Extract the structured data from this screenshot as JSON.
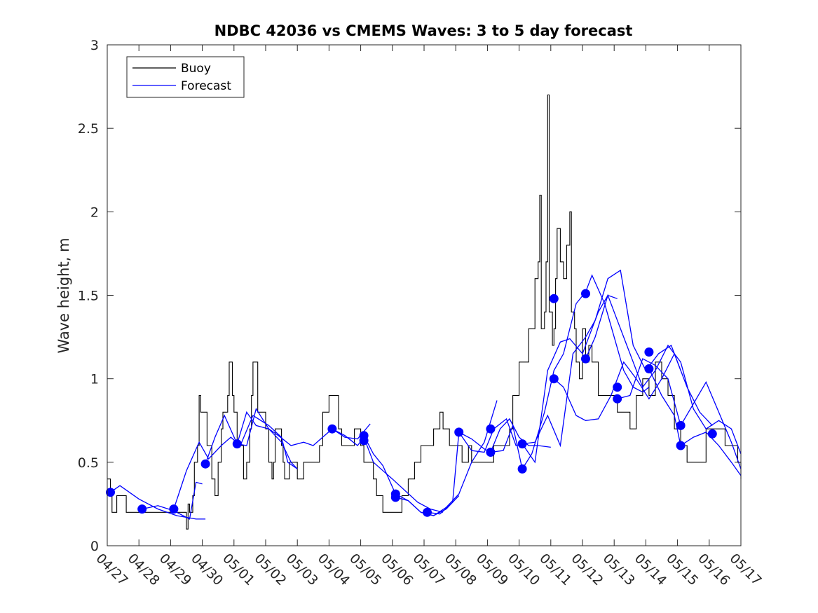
{
  "chart_data": {
    "type": "line",
    "title": "NDBC 42036 vs CMEMS Waves: 3 to 5 day forecast",
    "xlabel": "",
    "ylabel": "Wave height, m",
    "ylim": [
      0,
      3
    ],
    "yticks": [
      0,
      0.5,
      1,
      1.5,
      2,
      2.5,
      3
    ],
    "ytick_labels": [
      "0",
      "0.5",
      "1",
      "1.5",
      "2",
      "2.5",
      "3"
    ],
    "xlim": [
      "04/27",
      "05/17"
    ],
    "xtick_labels": [
      "04/27",
      "04/28",
      "04/29",
      "04/30",
      "05/01",
      "05/02",
      "05/03",
      "05/04",
      "05/05",
      "05/06",
      "05/07",
      "05/08",
      "05/09",
      "05/10",
      "05/11",
      "05/12",
      "05/13",
      "05/14",
      "05/15",
      "05/16",
      "05/17"
    ],
    "grid": false,
    "legend_position": "top-left",
    "colors": {
      "buoy": "#000000",
      "forecast": "#0000ff",
      "axes": "#262626"
    },
    "legend": [
      {
        "name": "Buoy",
        "color": "#000000"
      },
      {
        "name": "Forecast",
        "color": "#0000ff"
      }
    ],
    "buoy": {
      "name": "Buoy",
      "x_days_from_04_27": [
        0,
        0.1,
        0.15,
        0.3,
        0.35,
        0.6,
        0.75,
        1.0,
        1.5,
        2.0,
        2.5,
        2.55,
        2.6,
        2.7,
        2.75,
        2.85,
        2.9,
        2.95,
        3.1,
        3.15,
        3.3,
        3.4,
        3.5,
        3.6,
        3.65,
        3.8,
        3.85,
        3.95,
        4.0,
        4.1,
        4.3,
        4.4,
        4.5,
        4.55,
        4.6,
        4.75,
        4.8,
        5.0,
        5.1,
        5.2,
        5.25,
        5.3,
        5.5,
        5.55,
        5.6,
        5.65,
        5.75,
        5.85,
        6.0,
        6.2,
        6.3,
        6.5,
        6.7,
        6.8,
        7.0,
        7.3,
        7.4,
        7.6,
        7.7,
        7.8,
        8.0,
        8.1,
        8.2,
        8.4,
        8.5,
        8.6,
        8.7,
        8.9,
        9.1,
        9.3,
        9.5,
        9.7,
        9.9,
        10.0,
        10.3,
        10.5,
        10.6,
        10.8,
        11.0,
        11.2,
        11.3,
        11.4,
        11.5,
        11.8,
        12.0,
        12.1,
        12.2,
        12.3,
        12.5,
        12.7,
        12.8,
        13.0,
        13.3,
        13.5,
        13.6,
        13.65,
        13.7,
        13.8,
        13.85,
        13.9,
        13.95,
        14.05,
        14.1,
        14.15,
        14.2,
        14.3,
        14.4,
        14.5,
        14.6,
        14.65,
        14.75,
        14.8,
        14.9,
        15.0,
        15.1,
        15.2,
        15.3,
        15.5,
        15.7,
        15.9,
        16.1,
        16.3,
        16.5,
        16.7,
        16.9,
        17.1,
        17.3,
        17.5,
        17.7,
        17.9,
        18.1,
        18.3,
        18.5,
        18.7,
        18.9,
        19.1,
        19.3,
        19.5,
        19.7,
        19.9,
        20.0
      ],
      "values": [
        0.4,
        0.3,
        0.2,
        0.3,
        0.3,
        0.2,
        0.2,
        0.2,
        0.2,
        0.2,
        0.1,
        0.25,
        0.2,
        0.3,
        0.5,
        0.6,
        0.9,
        0.8,
        0.8,
        0.6,
        0.4,
        0.3,
        0.5,
        0.7,
        0.8,
        0.9,
        1.1,
        0.9,
        0.8,
        0.6,
        0.4,
        0.5,
        0.7,
        0.9,
        1.1,
        0.8,
        0.8,
        0.7,
        0.5,
        0.4,
        0.5,
        0.7,
        0.6,
        0.5,
        0.4,
        0.4,
        0.5,
        0.5,
        0.4,
        0.5,
        0.5,
        0.5,
        0.6,
        0.8,
        0.9,
        0.7,
        0.6,
        0.6,
        0.6,
        0.7,
        0.6,
        0.5,
        0.5,
        0.4,
        0.3,
        0.3,
        0.2,
        0.2,
        0.2,
        0.3,
        0.4,
        0.5,
        0.6,
        0.6,
        0.7,
        0.8,
        0.7,
        0.6,
        0.6,
        0.5,
        0.5,
        0.6,
        0.5,
        0.5,
        0.5,
        0.5,
        0.6,
        0.6,
        0.6,
        0.7,
        0.9,
        1.1,
        1.3,
        1.6,
        1.7,
        2.1,
        1.3,
        1.4,
        1.7,
        2.7,
        1.4,
        1.2,
        1.3,
        1.6,
        1.9,
        1.7,
        1.6,
        1.8,
        2.0,
        1.4,
        1.3,
        1.1,
        1.0,
        1.3,
        1.1,
        1.2,
        1.1,
        0.9,
        0.9,
        0.9,
        0.8,
        0.8,
        0.7,
        0.9,
        1.0,
        0.9,
        1.1,
        1.0,
        0.9,
        0.7,
        0.6,
        0.5,
        0.5,
        0.5,
        0.7,
        0.7,
        0.7,
        0.6,
        0.6,
        0.5,
        0.4
      ]
    },
    "forecast_series": [
      {
        "name": "Forecast",
        "x_days_from_04_27": [
          0.1,
          0.4,
          1.0,
          1.6,
          2.2,
          2.8,
          3.1
        ],
        "values": [
          0.32,
          0.36,
          0.28,
          0.22,
          0.18,
          0.16,
          0.16
        ]
      },
      {
        "name": "Forecast",
        "x_days_from_04_27": [
          1.1,
          1.6,
          2.1,
          2.6,
          2.8,
          3.0
        ],
        "values": [
          0.22,
          0.24,
          0.21,
          0.16,
          0.38,
          0.37
        ]
      },
      {
        "name": "Forecast",
        "x_days_from_04_27": [
          2.1,
          2.5,
          2.9,
          3.2,
          3.6,
          3.9,
          4.2,
          4.6,
          5.1,
          5.5,
          5.7,
          6.0
        ],
        "values": [
          0.22,
          0.45,
          0.62,
          0.52,
          0.6,
          0.65,
          0.6,
          0.78,
          0.72,
          0.65,
          0.5,
          0.46
        ]
      },
      {
        "name": "Forecast",
        "x_days_from_04_27": [
          3.1,
          3.4,
          3.7,
          4.1,
          4.4,
          4.7,
          5.1,
          5.5,
          5.8,
          6.0
        ],
        "values": [
          0.49,
          0.65,
          0.78,
          0.61,
          0.8,
          0.72,
          0.7,
          0.62,
          0.5,
          0.46
        ]
      },
      {
        "name": "Forecast",
        "x_days_from_04_27": [
          4.1,
          4.4,
          4.7,
          5.1,
          5.4,
          5.8,
          6.2,
          6.5,
          7.1,
          7.5,
          7.9,
          8.3
        ],
        "values": [
          0.61,
          0.6,
          0.82,
          0.7,
          0.66,
          0.6,
          0.62,
          0.6,
          0.7,
          0.65,
          0.64,
          0.73
        ]
      },
      {
        "name": "Forecast",
        "x_days_from_04_27": [
          7.1,
          7.5,
          7.9,
          8.1,
          8.4,
          8.7,
          9.0,
          9.4,
          9.8,
          10.2,
          10.6
        ],
        "values": [
          0.7,
          0.66,
          0.6,
          0.65,
          0.5,
          0.45,
          0.4,
          0.33,
          0.26,
          0.22,
          0.2
        ]
      },
      {
        "name": "Forecast",
        "x_days_from_04_27": [
          8.1,
          8.4,
          8.7,
          9.1,
          9.5,
          9.9,
          10.3,
          10.7,
          11.1
        ],
        "values": [
          0.66,
          0.55,
          0.48,
          0.31,
          0.27,
          0.2,
          0.18,
          0.22,
          0.3
        ]
      },
      {
        "name": "Forecast",
        "x_days_from_04_27": [
          9.1,
          9.5,
          9.9,
          10.3,
          10.7,
          11.1,
          11.5,
          11.9,
          12.3
        ],
        "values": [
          0.29,
          0.27,
          0.2,
          0.18,
          0.23,
          0.31,
          0.5,
          0.62,
          0.87
        ]
      },
      {
        "name": "Forecast",
        "x_days_from_04_27": [
          10.1,
          10.5,
          10.9,
          11.1,
          11.5,
          11.9,
          12.1,
          12.4,
          12.7,
          13.0,
          13.3,
          13.6,
          14.0
        ],
        "values": [
          0.2,
          0.19,
          0.26,
          0.68,
          0.64,
          0.58,
          0.56,
          0.7,
          0.76,
          0.65,
          0.6,
          0.6,
          0.59
        ]
      },
      {
        "name": "Forecast",
        "x_days_from_04_27": [
          11.1,
          11.5,
          11.9,
          12.2,
          12.6,
          12.9,
          13.1,
          13.5,
          13.9,
          14.3,
          14.6,
          15.0,
          15.5,
          15.8,
          16.1
        ],
        "values": [
          0.68,
          0.57,
          0.56,
          0.7,
          0.76,
          0.6,
          0.61,
          0.5,
          1.05,
          1.22,
          1.24,
          1.15,
          1.4,
          1.5,
          1.48
        ]
      },
      {
        "name": "Forecast",
        "x_days_from_04_27": [
          12.1,
          12.5,
          12.8,
          13.1,
          13.4,
          13.8,
          14.1,
          14.4,
          14.8,
          15.1,
          15.3,
          15.7,
          16.0,
          16.3,
          16.6,
          16.9,
          17.1
        ],
        "values": [
          0.56,
          0.57,
          0.72,
          0.46,
          0.55,
          0.8,
          1.05,
          1.15,
          1.45,
          1.52,
          1.62,
          1.45,
          1.25,
          1.05,
          0.95,
          0.92,
          0.95
        ]
      },
      {
        "name": "Forecast",
        "x_days_from_04_27": [
          13.1,
          13.5,
          13.9,
          14.3,
          14.7,
          15.1,
          15.4,
          15.8,
          16.2,
          16.6,
          17.0,
          17.4,
          17.8,
          18.1
        ],
        "values": [
          0.61,
          0.62,
          0.78,
          0.6,
          1.15,
          1.25,
          1.35,
          1.6,
          1.65,
          1.2,
          1.05,
          1.15,
          1.2,
          1.05
        ]
      },
      {
        "name": "Forecast",
        "x_days_from_04_27": [
          14.1,
          14.4,
          14.8,
          15.1,
          15.5,
          15.9,
          16.3,
          16.7,
          17.1,
          17.5,
          17.9,
          18.3,
          18.7,
          19.1
        ],
        "values": [
          1.0,
          0.95,
          0.78,
          0.75,
          0.76,
          0.9,
          1.1,
          1.0,
          0.88,
          1.0,
          1.15,
          0.95,
          0.8,
          0.72
        ]
      },
      {
        "name": "Forecast",
        "x_days_from_04_27": [
          15.1,
          15.4,
          15.8,
          16.1,
          16.5,
          16.9,
          17.3,
          17.7,
          18.1,
          18.5,
          18.9,
          19.3,
          19.7,
          20.0
        ],
        "values": [
          1.12,
          1.25,
          1.5,
          1.35,
          1.15,
          0.95,
          1.05,
          1.2,
          1.1,
          0.82,
          0.7,
          0.75,
          0.7,
          0.55
        ]
      },
      {
        "name": "Forecast",
        "x_days_from_04_27": [
          16.1,
          16.5,
          16.9,
          17.3,
          17.7,
          18.1,
          18.5,
          18.9,
          19.3,
          19.7,
          20.0
        ],
        "values": [
          0.88,
          0.9,
          1.12,
          1.08,
          1.0,
          0.72,
          0.85,
          0.98,
          0.8,
          0.62,
          0.46
        ]
      },
      {
        "name": "Forecast",
        "x_days_from_04_27": [
          17.1,
          17.5,
          17.9,
          18.1,
          18.5,
          18.9,
          19.3,
          19.7,
          20.0
        ],
        "values": [
          1.06,
          0.9,
          0.78,
          0.6,
          0.65,
          0.68,
          0.6,
          0.5,
          0.42
        ]
      }
    ],
    "forecast_markers": {
      "x_days_from_04_27": [
        0.1,
        1.1,
        2.1,
        3.1,
        4.1,
        7.1,
        8.1,
        8.1,
        9.1,
        9.1,
        10.1,
        11.1,
        12.1,
        12.1,
        13.1,
        13.1,
        14.1,
        14.1,
        15.1,
        15.1,
        16.1,
        16.1,
        17.1,
        17.1,
        18.1,
        18.1,
        19.1
      ],
      "values": [
        0.32,
        0.22,
        0.22,
        0.49,
        0.61,
        0.7,
        0.66,
        0.63,
        0.31,
        0.29,
        0.2,
        0.68,
        0.56,
        0.7,
        0.61,
        0.46,
        1.48,
        1.0,
        1.51,
        1.12,
        0.95,
        0.88,
        1.16,
        1.06,
        0.72,
        0.6,
        0.67
      ]
    }
  }
}
